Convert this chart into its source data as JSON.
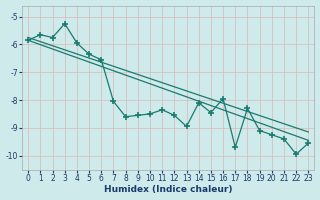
{
  "xlabel": "Humidex (Indice chaleur)",
  "bg_color": "#ceeaea",
  "grid_color": "#c0d8d8",
  "line_color": "#1a7a6e",
  "xlim": [
    -0.5,
    23.5
  ],
  "ylim": [
    -10.5,
    -4.6
  ],
  "yticks": [
    -10,
    -9,
    -8,
    -7,
    -6,
    -5
  ],
  "xticks": [
    0,
    1,
    2,
    3,
    4,
    5,
    6,
    7,
    8,
    9,
    10,
    11,
    12,
    13,
    14,
    15,
    16,
    17,
    18,
    19,
    20,
    21,
    22,
    23
  ],
  "trend1_x": [
    0,
    23
  ],
  "trend1_y": [
    -5.85,
    -9.45
  ],
  "trend2_x": [
    0,
    23
  ],
  "trend2_y": [
    -5.75,
    -9.15
  ],
  "jagged_x": [
    0,
    1,
    2,
    3,
    4,
    5,
    6,
    7,
    8,
    9,
    10,
    11,
    12,
    13,
    14,
    15,
    16,
    17,
    18,
    19,
    20,
    21,
    22,
    23
  ],
  "jagged_y": [
    -5.85,
    -5.65,
    -5.75,
    -5.25,
    -5.95,
    -6.35,
    -6.55,
    -8.05,
    -8.6,
    -8.55,
    -8.5,
    -8.35,
    -8.55,
    -8.95,
    -8.1,
    -8.45,
    -7.95,
    -9.7,
    -8.3,
    -9.1,
    -9.25,
    -9.4,
    -9.95,
    -9.55
  ]
}
